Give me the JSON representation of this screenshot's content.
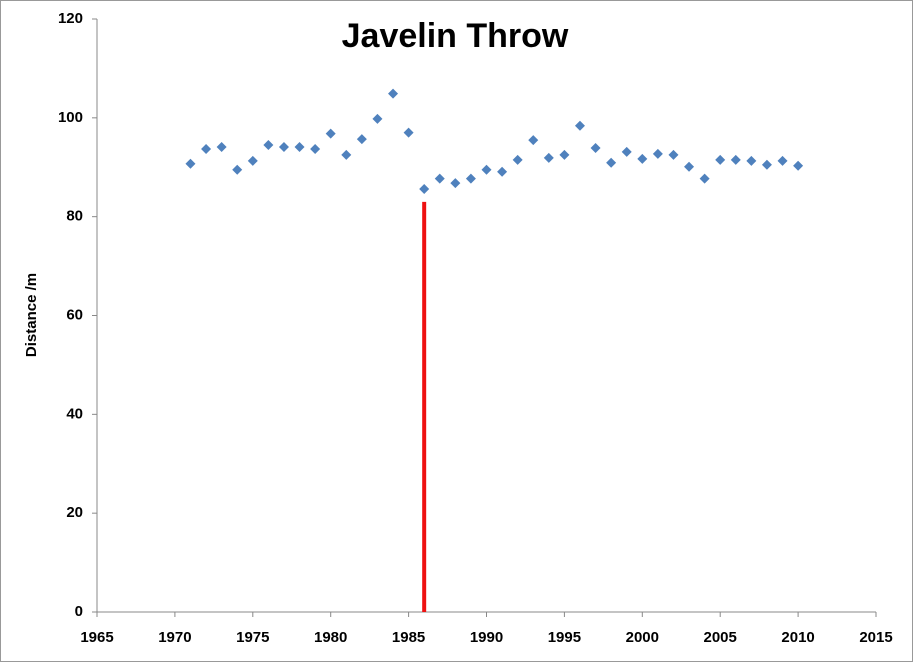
{
  "chart_data": {
    "type": "scatter",
    "title": "Javelin Throw",
    "y_label": "Distance /m",
    "x": [
      1971,
      1972,
      1973,
      1974,
      1975,
      1976,
      1977,
      1978,
      1979,
      1980,
      1981,
      1982,
      1983,
      1984,
      1985,
      1986,
      1987,
      1988,
      1989,
      1990,
      1991,
      1992,
      1993,
      1994,
      1995,
      1996,
      1997,
      1998,
      1999,
      2000,
      2001,
      2002,
      2003,
      2004,
      2005,
      2006,
      2007,
      2008,
      2009,
      2010
    ],
    "values": [
      90.7,
      93.7,
      94.1,
      89.5,
      91.3,
      94.5,
      94.1,
      94.1,
      93.7,
      96.8,
      92.5,
      95.7,
      99.8,
      104.9,
      97.0,
      85.6,
      87.7,
      86.8,
      87.7,
      89.5,
      89.1,
      91.5,
      95.5,
      91.9,
      92.5,
      98.4,
      93.9,
      90.9,
      93.1,
      91.7,
      92.7,
      92.5,
      90.1,
      87.7,
      91.5,
      91.5,
      91.3,
      90.5,
      91.3,
      90.3
    ],
    "color": "#4f81bd",
    "lines": [
      {
        "x": [
          1986,
          1986
        ],
        "y": [
          0,
          83
        ],
        "color": "#ee1111"
      }
    ],
    "xlim": [
      1965,
      2015
    ],
    "xticks": [
      1965,
      1970,
      1975,
      1980,
      1985,
      1990,
      1995,
      2000,
      2005,
      2010,
      2015
    ],
    "ylim": [
      0,
      120
    ],
    "yticks": [
      0,
      20,
      40,
      60,
      80,
      100,
      120
    ],
    "grid": false
  }
}
